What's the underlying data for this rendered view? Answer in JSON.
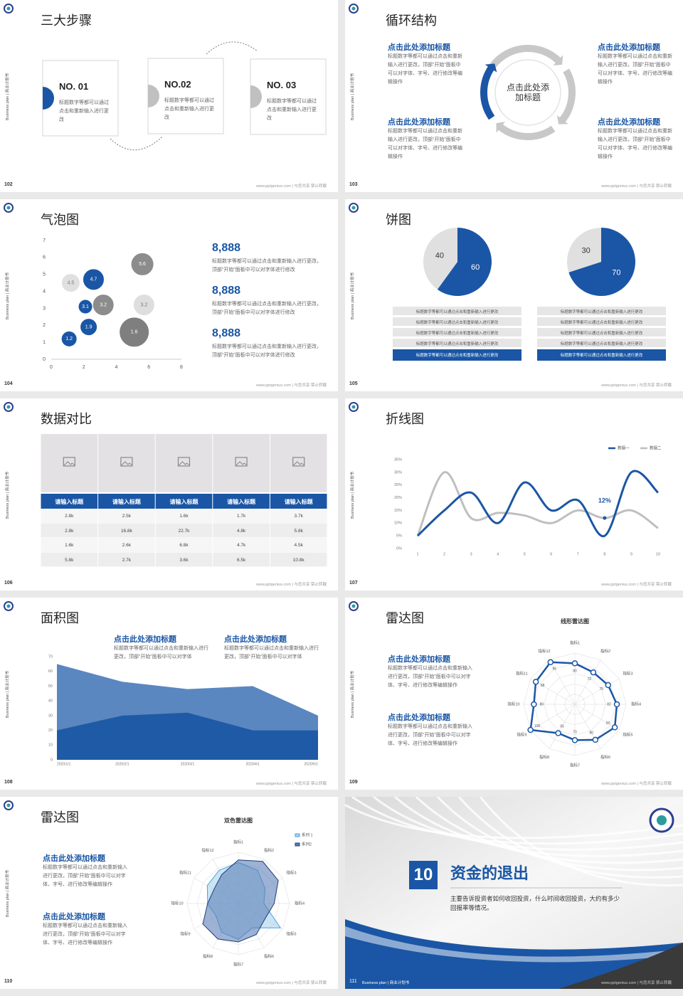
{
  "side_text": "Business plan | 商业计划书",
  "footer": "www.pptgenius.com | 与您共享 禁止转载",
  "slides": [
    {
      "page": "102",
      "title": "三大步骤",
      "steps": [
        {
          "label": "NO. 01",
          "text": "标题数字等都可以通过点击和重新输入进行更改"
        },
        {
          "label": "NO.02",
          "text": "标题数字等都可以通过点击和重新输入进行更改"
        },
        {
          "label": "NO. 03",
          "text": "标题数字等都可以通过点击和重新输入进行更改"
        }
      ]
    },
    {
      "page": "103",
      "title": "循环结构",
      "center": "点击此处添加标题",
      "items": [
        {
          "heading": "点击此处添加标题",
          "text": "标题数字等都可以通过点击和重新输入进行更改，顶部“开始”面板中可以对字体、字号、进行修改等编辑操作"
        },
        {
          "heading": "点击此处添加标题",
          "text": "标题数字等都可以通过点击和重新输入进行更改，顶部“开始”面板中可以对字体、字号、进行修改等编辑操作"
        },
        {
          "heading": "点击此处添加标题",
          "text": "标题数字等都可以通过点击和重新输入进行更改，顶部“开始”面板中可以对字体、字号、进行修改等编辑操作"
        },
        {
          "heading": "点击此处添加标题",
          "text": "标题数字等都可以通过点击和重新输入进行更改，顶部“开始”面板中可以对字体、字号、进行修改等编辑操作"
        }
      ]
    },
    {
      "page": "104",
      "title": "气泡图",
      "bubble": {
        "xlim": [
          0,
          8
        ],
        "ylim": [
          0,
          7
        ],
        "xticks": [
          0,
          2,
          4,
          6,
          8
        ],
        "yticks": [
          0,
          1,
          2,
          3,
          4,
          5,
          6,
          7
        ],
        "points": [
          {
            "x": 1.1,
            "y": 1.2,
            "size": 11,
            "color": "#1a56a5"
          },
          {
            "x": 2.3,
            "y": 1.9,
            "size": 12,
            "color": "#1a56a5"
          },
          {
            "x": 2.1,
            "y": 3.1,
            "size": 10,
            "color": "#1a56a5"
          },
          {
            "x": 3.2,
            "y": 3.2,
            "size": 15,
            "color": "#8c8c8c"
          },
          {
            "x": 2.6,
            "y": 4.7,
            "size": 15,
            "color": "#1a56a5"
          },
          {
            "x": 1.2,
            "y": 4.5,
            "size": 13,
            "color": "#e0e0e0"
          },
          {
            "x": 5.6,
            "y": 5.6,
            "size": 16,
            "color": "#8c8c8c"
          },
          {
            "x": 5.7,
            "y": 3.2,
            "size": 15,
            "color": "#dedede"
          },
          {
            "x": 5.1,
            "y": 1.6,
            "size": 21,
            "color": "#7f7f7f"
          }
        ]
      },
      "stats": [
        {
          "value": "8,888",
          "text": "标题数字等都可以通过点击和重新输入进行更改，顶部“开始”面板中可以对字体进行修改"
        },
        {
          "value": "8,888",
          "text": "标题数字等都可以通过点击和重新输入进行更改，顶部“开始”面板中可以对字体进行修改"
        },
        {
          "value": "8,888",
          "text": "标题数字等都可以通过点击和重新输入进行更改，顶部“开始”面板中可以对字体进行修改"
        }
      ]
    },
    {
      "page": "105",
      "title": "饼图",
      "pies": [
        {
          "values": [
            60,
            40
          ],
          "colors": [
            "#1a56a5",
            "#e0e0e0"
          ],
          "items": [
            "标题数字等都可以通过点击和重新输入进行更改",
            "标题数字等都可以通过点击和重新输入进行更改",
            "标题数字等都可以通过点击和重新输入进行更改",
            "标题数字等都可以通过点击和重新输入进行更改",
            "标题数字等都可以通过点击和重新输入进行更改"
          ]
        },
        {
          "values": [
            70,
            30
          ],
          "colors": [
            "#1a56a5",
            "#e0e0e0"
          ],
          "items": [
            "标题数字等都可以通过点击和重新输入进行更改",
            "标题数字等都可以通过点击和重新输入进行更改",
            "标题数字等都可以通过点击和重新输入进行更改",
            "标题数字等都可以通过点击和重新输入进行更改",
            "标题数字等都可以通过点击和重新输入进行更改"
          ]
        }
      ]
    },
    {
      "page": "106",
      "title": "数据对比",
      "table": {
        "headers": [
          "请输入标题",
          "请输入标题",
          "请输入标题",
          "请输入标题",
          "请输入标题"
        ],
        "rows": [
          [
            "2.8k",
            "2.5k",
            "1.6k",
            "1.7k",
            "3.7k"
          ],
          [
            "2.8k",
            "16.8k",
            "22.7k",
            "4.8k",
            "5.8k"
          ],
          [
            "1.6k",
            "2.6k",
            "6.8k",
            "4.7k",
            "4.5k"
          ],
          [
            "5.8k",
            "2.7k",
            "3.6k",
            "6.5k",
            "10.8k"
          ]
        ]
      }
    },
    {
      "page": "107",
      "title": "折线图",
      "line": {
        "x": [
          1,
          2,
          3,
          4,
          5,
          6,
          7,
          8,
          9,
          10
        ],
        "xlim": [
          1,
          10
        ],
        "ylim": [
          0,
          35
        ],
        "yticks": [
          {
            "value": 0,
            "label": "0%"
          },
          {
            "value": 5,
            "label": "5%"
          },
          {
            "value": 10,
            "label": "10%"
          },
          {
            "value": 15,
            "label": "15%"
          },
          {
            "value": 20,
            "label": "20%"
          },
          {
            "value": 25,
            "label": "25%"
          },
          {
            "value": 30,
            "label": "30%"
          },
          {
            "value": 35,
            "label": "35%"
          }
        ],
        "series": [
          {
            "name": "数据一",
            "color": "#1a56a5",
            "values": [
              5,
              15,
              22,
              10,
              26,
              15,
              19,
              5,
              30,
              22
            ]
          },
          {
            "name": "数据二",
            "color": "#bfbfbf",
            "values": [
              5,
              30,
              12,
              14,
              13,
              10,
              15,
              12,
              15,
              8
            ]
          }
        ],
        "annotation": {
          "x": 8,
          "value": 12,
          "label": "12%"
        }
      }
    },
    {
      "page": "108",
      "title": "面积图",
      "blocks": [
        {
          "heading": "点击此处添加标题",
          "text": "标题数字等都可以通过点击和重新输入进行更改，顶部“开始”面板中可以对字体"
        },
        {
          "heading": "点击此处添加标题",
          "text": "标题数字等都可以通过点击和重新输入进行更改，顶部“开始”面板中可以对字体"
        }
      ],
      "area": {
        "categories": [
          "2020/1/1",
          "2020/2/1",
          "2020/3/1",
          "2020/4/1",
          "2020/5/1"
        ],
        "ylim": [
          0,
          70
        ],
        "yticks": [
          0,
          10,
          20,
          30,
          40,
          50,
          60,
          70
        ],
        "series": [
          {
            "color": "#5b87c0",
            "values": [
              65,
              53,
              48,
              50,
              30
            ]
          },
          {
            "color": "#1f5aa6",
            "values": [
              20,
              30,
              32,
              20,
              20
            ]
          }
        ]
      }
    },
    {
      "page": "109",
      "title": "雷达图",
      "blocks": [
        {
          "heading": "点击此处添加标题",
          "text": "标题数字等都可以通过点击和重新输入进行更改，顶部“开始”面板中可以对字体、字号、进行修改等编辑操作"
        },
        {
          "heading": "点击此处添加标题",
          "text": "标题数字等都可以通过点击和重新输入进行更改，顶部“开始”面板中可以对字体、字号、进行修改等编辑操作"
        }
      ],
      "radar": {
        "title": "线形雷达图",
        "axes": [
          "指标1",
          "指标2",
          "指标3",
          "指标4",
          "指标5",
          "指标6",
          "指标7",
          "指标8",
          "指标9",
          "指标10",
          "指标11",
          "指标12"
        ],
        "rlim": [
          0,
          100
        ],
        "series": [
          {
            "color": "#1a56a5",
            "markers": true,
            "values": [
              80,
              72,
              75,
              82,
              90,
              80,
              70,
              65,
              100,
              80,
              88,
              95
            ]
          }
        ]
      }
    },
    {
      "page": "110",
      "title": "雷达图",
      "blocks": [
        {
          "heading": "点击此处添加标题",
          "text": "标题数字等都可以通过点击和重新输入进行更改，顶部“开始”面板中可以对字体、字号、进行修改等编辑操作"
        },
        {
          "heading": "点击此处添加标题",
          "text": "标题数字等都可以通过点击和重新输入进行更改，顶部“开始”面板中可以对字体、字号、进行修改等编辑操作"
        }
      ],
      "radar": {
        "title": "双色雷达图",
        "axes": [
          "指标1",
          "指标2",
          "指标3",
          "指标4",
          "指标5",
          "指标6",
          "指标7",
          "指标8",
          "指标9",
          "指标10",
          "指标11",
          "指标12"
        ],
        "rlim": [
          0,
          100
        ],
        "series": [
          {
            "name": "系列 1",
            "color": "#4aa3d8",
            "fill": "#a9d3ee",
            "values": [
              80,
              75,
              60,
              50,
              95,
              55,
              70,
              65,
              50,
              60,
              70,
              75
            ]
          },
          {
            "name": "系列2",
            "color": "#1f3c78",
            "fill": "#5b7fb8",
            "values": [
              85,
              95,
              90,
              70,
              60,
              70,
              75,
              80,
              80,
              60,
              55,
              65
            ]
          }
        ]
      }
    },
    {
      "page": "111",
      "number": "10",
      "title": "资金的退出",
      "text": "主要告诉投资者如何收回投资，什么时间收回投资，大约有多少回报率等情况。"
    }
  ]
}
